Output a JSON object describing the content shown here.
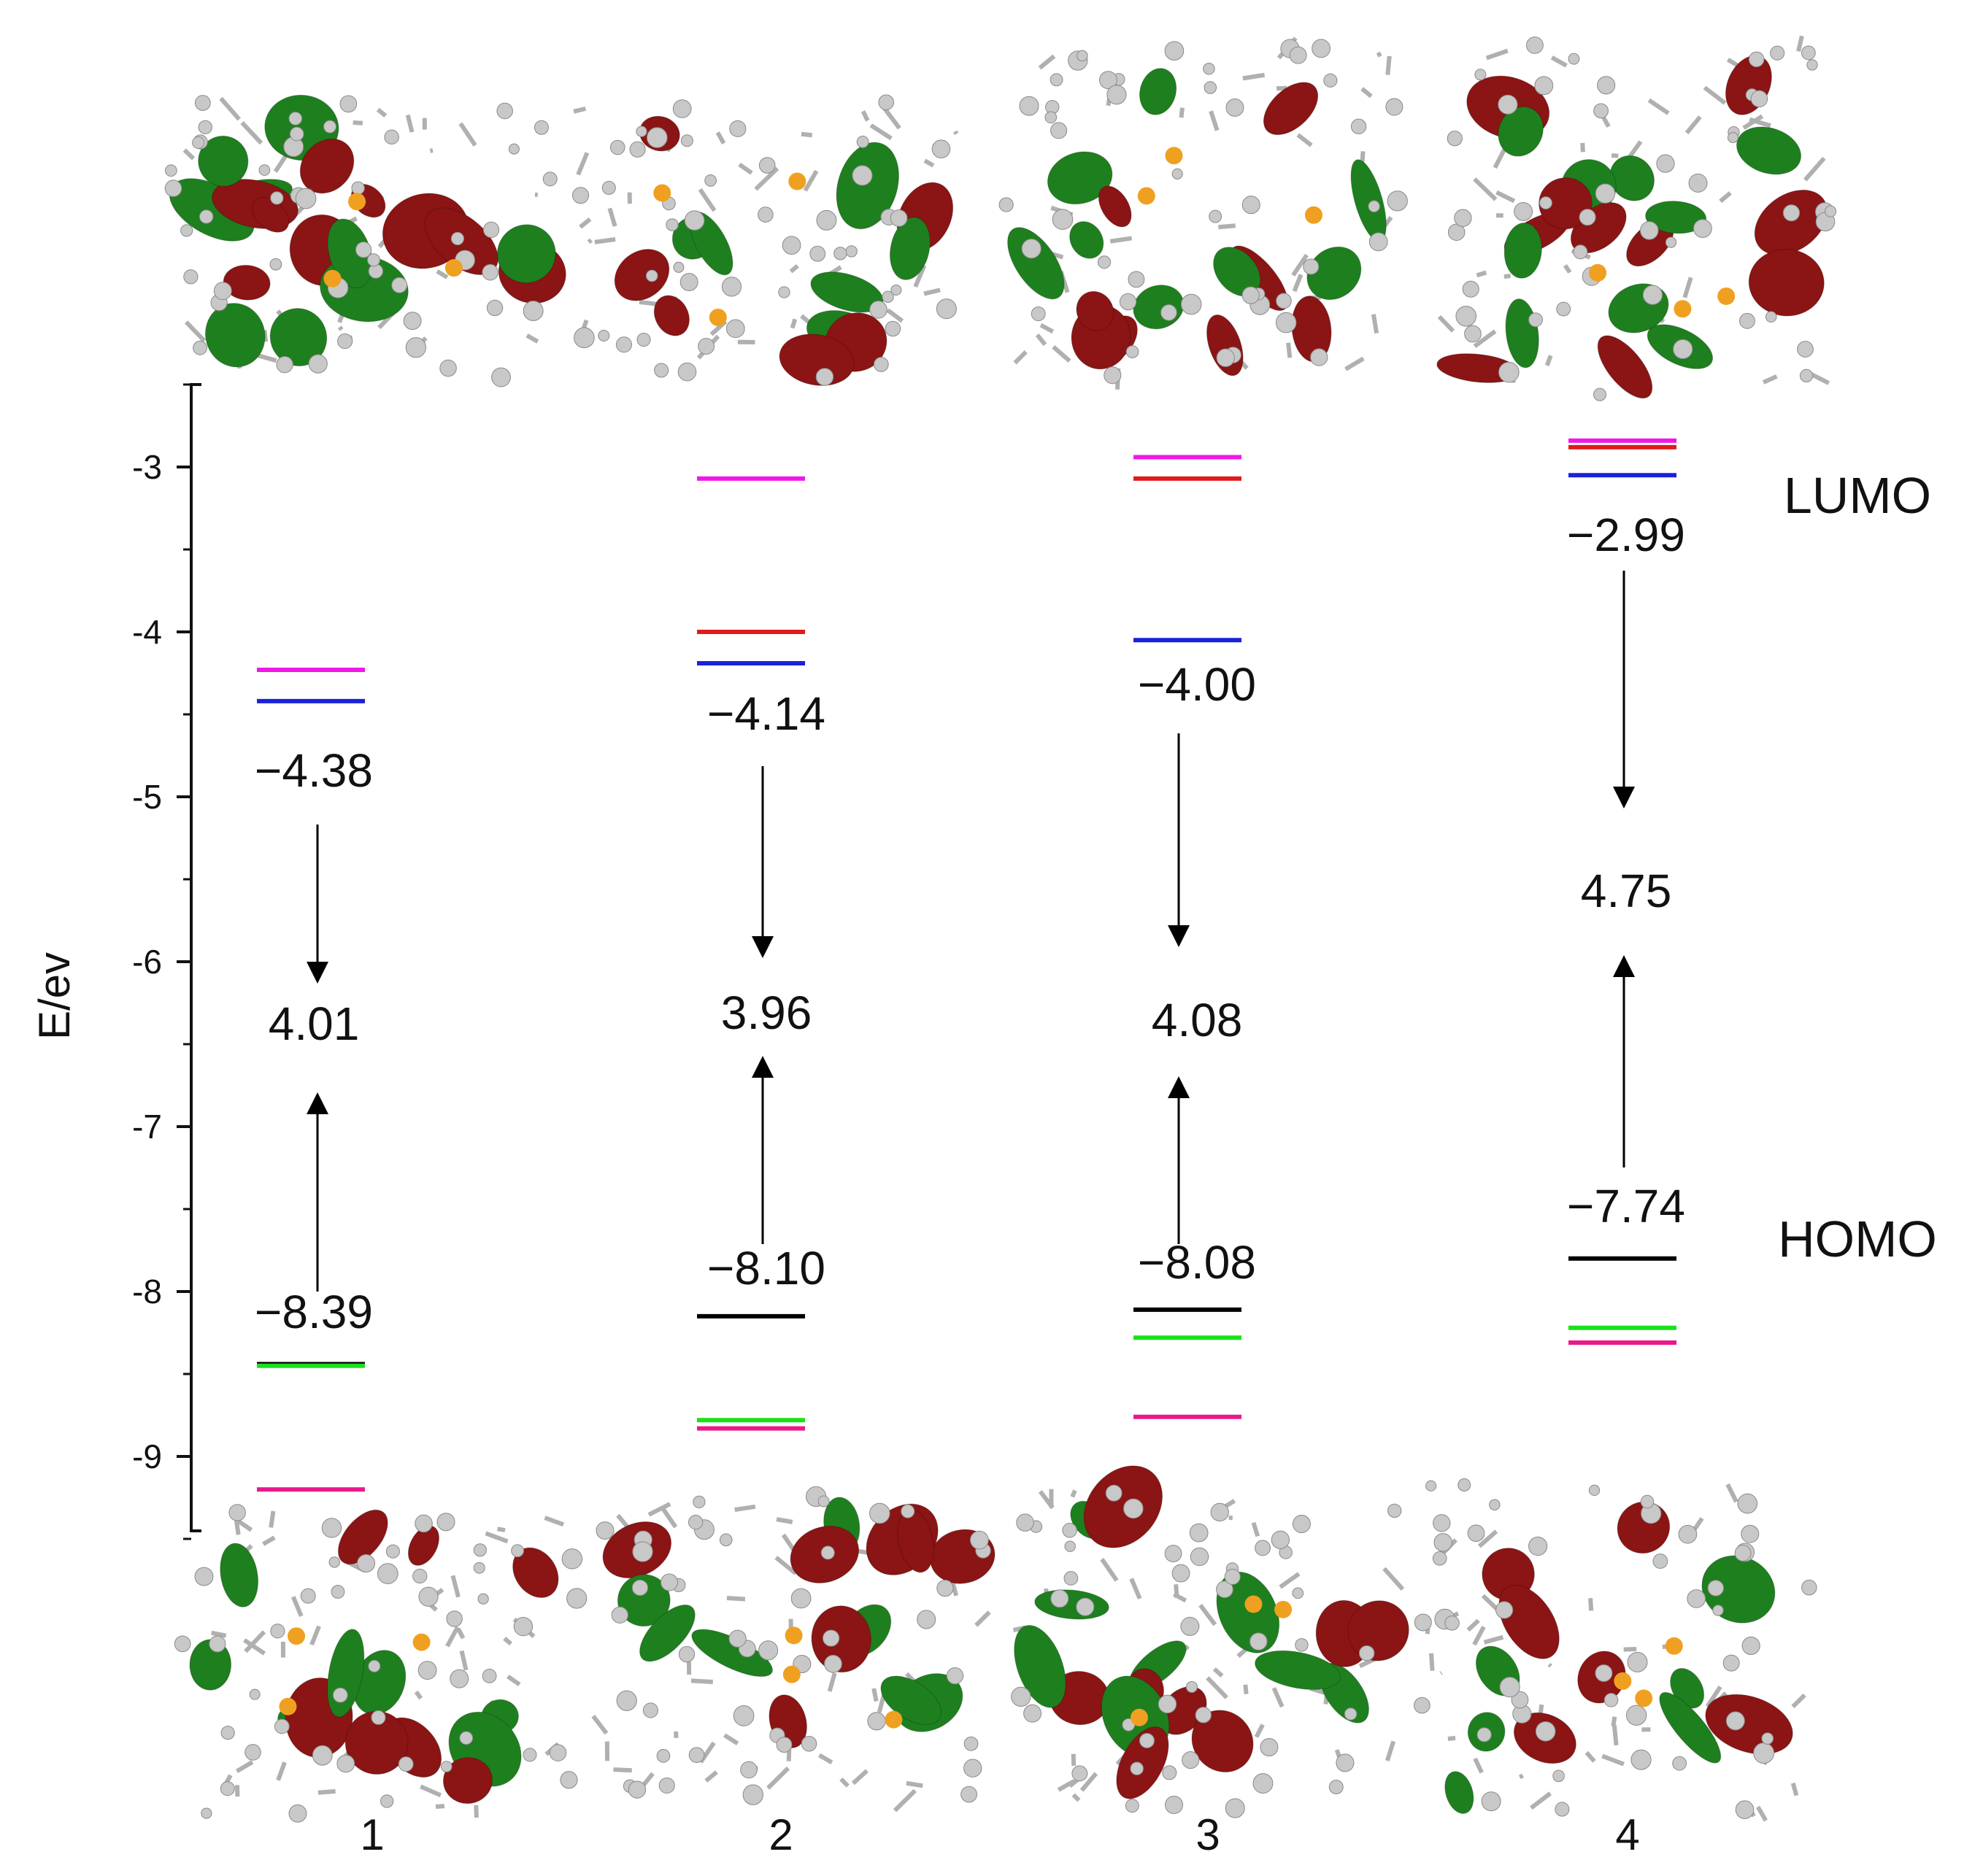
{
  "chart_data": {
    "type": "energy-level-diagram",
    "ylabel": "E/ev",
    "ylim": [
      -9.5,
      -2.5
    ],
    "yticks": [
      -3,
      -4,
      -5,
      -6,
      -7,
      -8,
      -9
    ],
    "yticks_display": [
      "-3",
      "-4",
      "-5",
      "-6",
      "-7",
      "-8",
      "-9"
    ],
    "side_labels": {
      "lumo": "LUMO",
      "homo": "HOMO"
    },
    "colors": {
      "magenta": "#f018e8",
      "red": "#e01a1a",
      "blue": "#1a22d8",
      "black": "#000000",
      "green": "#1ae21a",
      "pink": "#e81a8a",
      "axis": "#111111",
      "orbital_red": "#8b1414",
      "orbital_green": "#1e7f1e",
      "atom": "#c8c8c8",
      "atom_p": "#f0a020"
    },
    "compounds": [
      {
        "label": "1",
        "lumo_label": "−4.38",
        "homo_label": "−8.39",
        "gap_label": "4.01",
        "levels": [
          {
            "energy": -4.23,
            "color": "magenta"
          },
          {
            "energy": -4.42,
            "color": "blue"
          },
          {
            "energy": -8.44,
            "color": "black"
          },
          {
            "energy": -8.45,
            "color": "green"
          },
          {
            "energy": -9.2,
            "color": "pink"
          }
        ]
      },
      {
        "label": "2",
        "lumo_label": "−4.14",
        "homo_label": "−8.10",
        "gap_label": "3.96",
        "levels": [
          {
            "energy": -3.07,
            "color": "magenta"
          },
          {
            "energy": -4.0,
            "color": "red"
          },
          {
            "energy": -4.19,
            "color": "blue"
          },
          {
            "energy": -8.15,
            "color": "black"
          },
          {
            "energy": -8.78,
            "color": "green"
          },
          {
            "energy": -8.83,
            "color": "pink"
          }
        ]
      },
      {
        "label": "3",
        "lumo_label": "−4.00",
        "homo_label": "−8.08",
        "gap_label": "4.08",
        "levels": [
          {
            "energy": -2.94,
            "color": "magenta"
          },
          {
            "energy": -3.07,
            "color": "red"
          },
          {
            "energy": -4.05,
            "color": "blue"
          },
          {
            "energy": -8.11,
            "color": "black"
          },
          {
            "energy": -8.28,
            "color": "green"
          },
          {
            "energy": -8.76,
            "color": "pink"
          }
        ]
      },
      {
        "label": "4",
        "lumo_label": "−2.99",
        "homo_label": "−7.74",
        "gap_label": "4.75",
        "levels": [
          {
            "energy": -2.84,
            "color": "magenta"
          },
          {
            "energy": -2.88,
            "color": "red"
          },
          {
            "energy": -3.05,
            "color": "blue"
          },
          {
            "energy": -7.8,
            "color": "black"
          },
          {
            "energy": -8.22,
            "color": "green"
          },
          {
            "energy": -8.31,
            "color": "pink"
          }
        ]
      }
    ]
  }
}
